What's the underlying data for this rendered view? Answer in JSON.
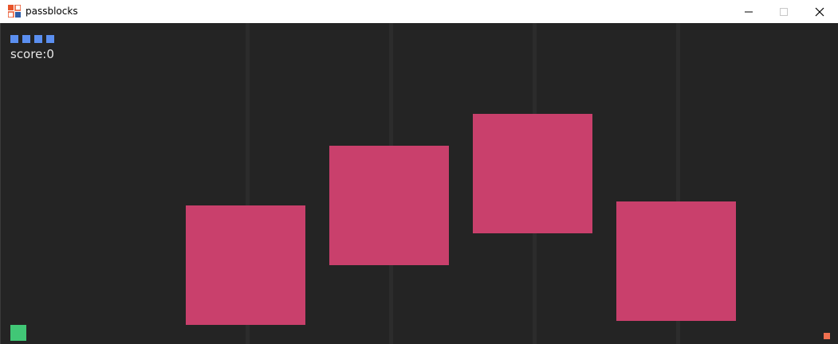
{
  "window": {
    "title": "passblocks",
    "icon": "app-grid-icon",
    "controls": [
      "minimize-icon",
      "maximize-icon",
      "close-icon"
    ]
  },
  "game": {
    "score_text": "score:0",
    "lives": 4,
    "colors": {
      "background": "#242424",
      "lane_line": "#2c2c2c",
      "life": "#5b8ff0",
      "block": "#c9406c",
      "player": "#41c776",
      "target": "#f07050",
      "score_text": "#e6e6e6"
    }
  }
}
